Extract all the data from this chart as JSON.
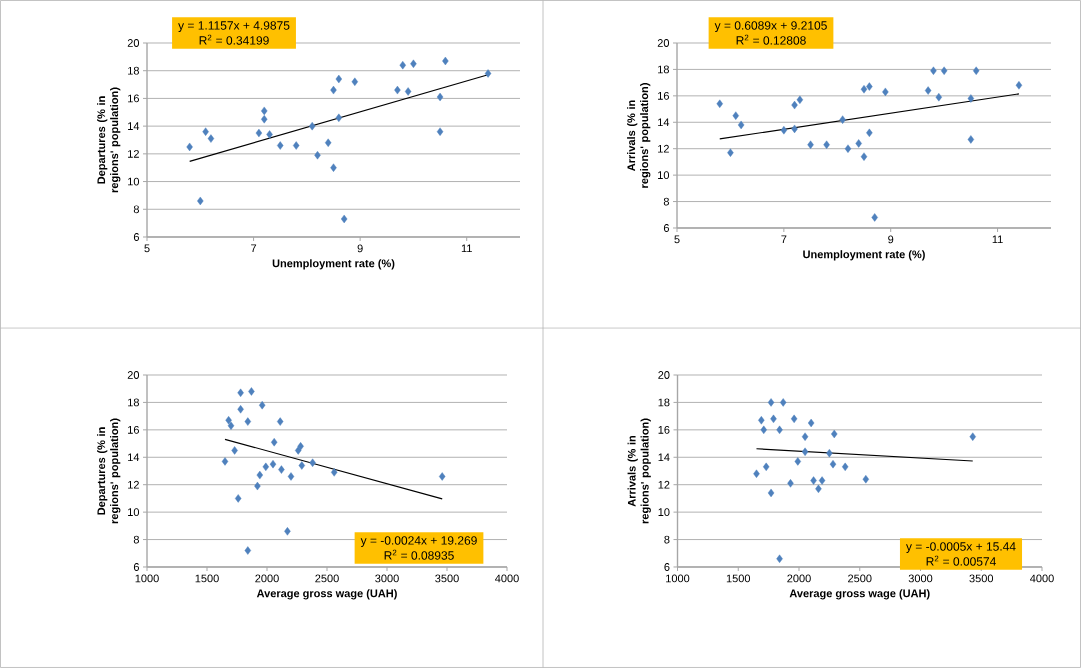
{
  "chart_data": [
    {
      "type": "scatter",
      "xlabel": "Unemployment rate (%)",
      "ylabel": "Departures (% in regions' population)",
      "xlim": [
        5,
        12
      ],
      "xticks": [
        5,
        7,
        9,
        11
      ],
      "ylim": [
        6,
        20
      ],
      "yticks": [
        6,
        8,
        10,
        12,
        14,
        16,
        18,
        20
      ],
      "grid": "y",
      "marker": "diamond",
      "annotations": [
        "y = 1.1157x + 4.9875",
        "R$^{2}$ = 0.34199"
      ],
      "series": [
        {
          "color": "#4f81bd",
          "x": [
            5.8,
            6.0,
            6.1,
            6.2,
            7.2,
            7.2,
            7.1,
            7.3,
            7.5,
            7.8,
            8.1,
            8.2,
            8.4,
            8.5,
            8.5,
            8.6,
            8.6,
            8.7,
            8.9,
            9.7,
            9.8,
            9.9,
            10.0,
            10.5,
            10.5,
            10.6,
            11.4
          ],
          "values": [
            12.5,
            8.6,
            13.6,
            13.1,
            15.1,
            14.5,
            13.5,
            13.4,
            12.6,
            12.6,
            14.0,
            11.9,
            12.8,
            16.6,
            11.0,
            17.4,
            14.6,
            7.3,
            17.2,
            16.6,
            18.4,
            16.5,
            18.5,
            16.1,
            13.6,
            18.7,
            17.8
          ]
        },
        {
          "type": "line",
          "color": "#000000",
          "marker": "none",
          "x": [
            5.8,
            11.4
          ],
          "values": [
            11.46,
            17.71
          ]
        }
      ]
    },
    {
      "type": "scatter",
      "xlabel": "Unemployment rate (%)",
      "ylabel": "Arrivals (% in regions' population)",
      "xlim": [
        5,
        12
      ],
      "xticks": [
        5,
        7,
        9,
        11
      ],
      "ylim": [
        6,
        20
      ],
      "yticks": [
        6,
        8,
        10,
        12,
        14,
        16,
        18,
        20
      ],
      "grid": "y",
      "marker": "diamond",
      "annotations": [
        "y = 0.6089x + 9.2105",
        "R$^{2}$ = 0.12808"
      ],
      "series": [
        {
          "color": "#4f81bd",
          "x": [
            5.8,
            6.0,
            6.1,
            6.2,
            7.0,
            7.2,
            7.2,
            7.3,
            7.5,
            7.8,
            8.1,
            8.2,
            8.4,
            8.5,
            8.5,
            8.6,
            8.6,
            8.7,
            8.9,
            9.7,
            9.8,
            9.9,
            10.0,
            10.5,
            10.5,
            10.6,
            11.4
          ],
          "values": [
            15.4,
            11.7,
            14.5,
            13.8,
            13.4,
            13.5,
            15.3,
            15.7,
            12.3,
            12.3,
            14.2,
            12.0,
            12.4,
            16.5,
            11.4,
            16.7,
            13.2,
            6.8,
            16.3,
            16.4,
            17.9,
            15.9,
            17.9,
            15.8,
            12.7,
            17.9,
            16.8
          ]
        },
        {
          "type": "line",
          "color": "#000000",
          "marker": "none",
          "x": [
            5.8,
            11.4
          ],
          "values": [
            12.74,
            16.15
          ]
        }
      ]
    },
    {
      "type": "scatter",
      "xlabel": "Average gross wage (UAH)",
      "ylabel": "Departures (% in regions' population)",
      "xlim": [
        1000,
        4000
      ],
      "xticks": [
        1000,
        1500,
        2000,
        2500,
        3000,
        3500,
        4000
      ],
      "ylim": [
        6,
        20
      ],
      "yticks": [
        6,
        8,
        10,
        12,
        14,
        16,
        18,
        20
      ],
      "grid": "y",
      "marker": "diamond",
      "annotations": [
        "y = -0.0024x + 19.269",
        "R$^{2}$ = 0.08935"
      ],
      "series": [
        {
          "color": "#4f81bd",
          "x": [
            1650,
            1680,
            1700,
            1730,
            1760,
            1780,
            1780,
            1840,
            1840,
            1870,
            1920,
            1940,
            1960,
            1990,
            2060,
            2050,
            2110,
            2120,
            2170,
            2200,
            2260,
            2280,
            2290,
            2380,
            2560,
            3460
          ],
          "values": [
            13.7,
            16.7,
            16.3,
            14.5,
            11.0,
            18.7,
            17.5,
            16.6,
            7.2,
            18.8,
            11.9,
            12.7,
            17.8,
            13.3,
            15.1,
            13.5,
            16.6,
            13.1,
            8.6,
            12.6,
            14.5,
            14.8,
            13.4,
            13.6,
            12.9,
            12.6
          ]
        },
        {
          "type": "line",
          "color": "#000000",
          "marker": "none",
          "x": [
            1650,
            3460
          ],
          "values": [
            15.31,
            10.97
          ]
        }
      ]
    },
    {
      "type": "scatter",
      "xlabel": "Average gross wage (UAH)",
      "ylabel": "Arrivals (% in regions' population)",
      "xlim": [
        1000,
        4000
      ],
      "xticks": [
        1000,
        1500,
        2000,
        2500,
        3000,
        3500,
        4000
      ],
      "ylim": [
        6,
        20
      ],
      "yticks": [
        6,
        8,
        10,
        12,
        14,
        16,
        18,
        20
      ],
      "grid": "y",
      "marker": "diamond",
      "annotations": [
        "y = -0.0005x + 15.44",
        "R$^{2}$ = 0.00574"
      ],
      "series": [
        {
          "color": "#4f81bd",
          "x": [
            1650,
            1690,
            1710,
            1730,
            1770,
            1770,
            1790,
            1840,
            1840,
            1870,
            1930,
            1960,
            1990,
            2050,
            2050,
            2100,
            2120,
            2160,
            2190,
            2250,
            2280,
            2290,
            2380,
            2550,
            3430
          ],
          "values": [
            12.8,
            16.7,
            16.0,
            13.3,
            11.4,
            18.0,
            16.8,
            16.0,
            6.6,
            18.0,
            12.1,
            16.8,
            13.7,
            15.5,
            14.4,
            16.5,
            12.3,
            11.7,
            12.3,
            14.3,
            13.5,
            15.7,
            13.3,
            12.4,
            15.5
          ]
        },
        {
          "type": "line",
          "color": "#000000",
          "marker": "none",
          "x": [
            1650,
            3430
          ],
          "values": [
            14.62,
            13.73
          ]
        }
      ]
    }
  ]
}
